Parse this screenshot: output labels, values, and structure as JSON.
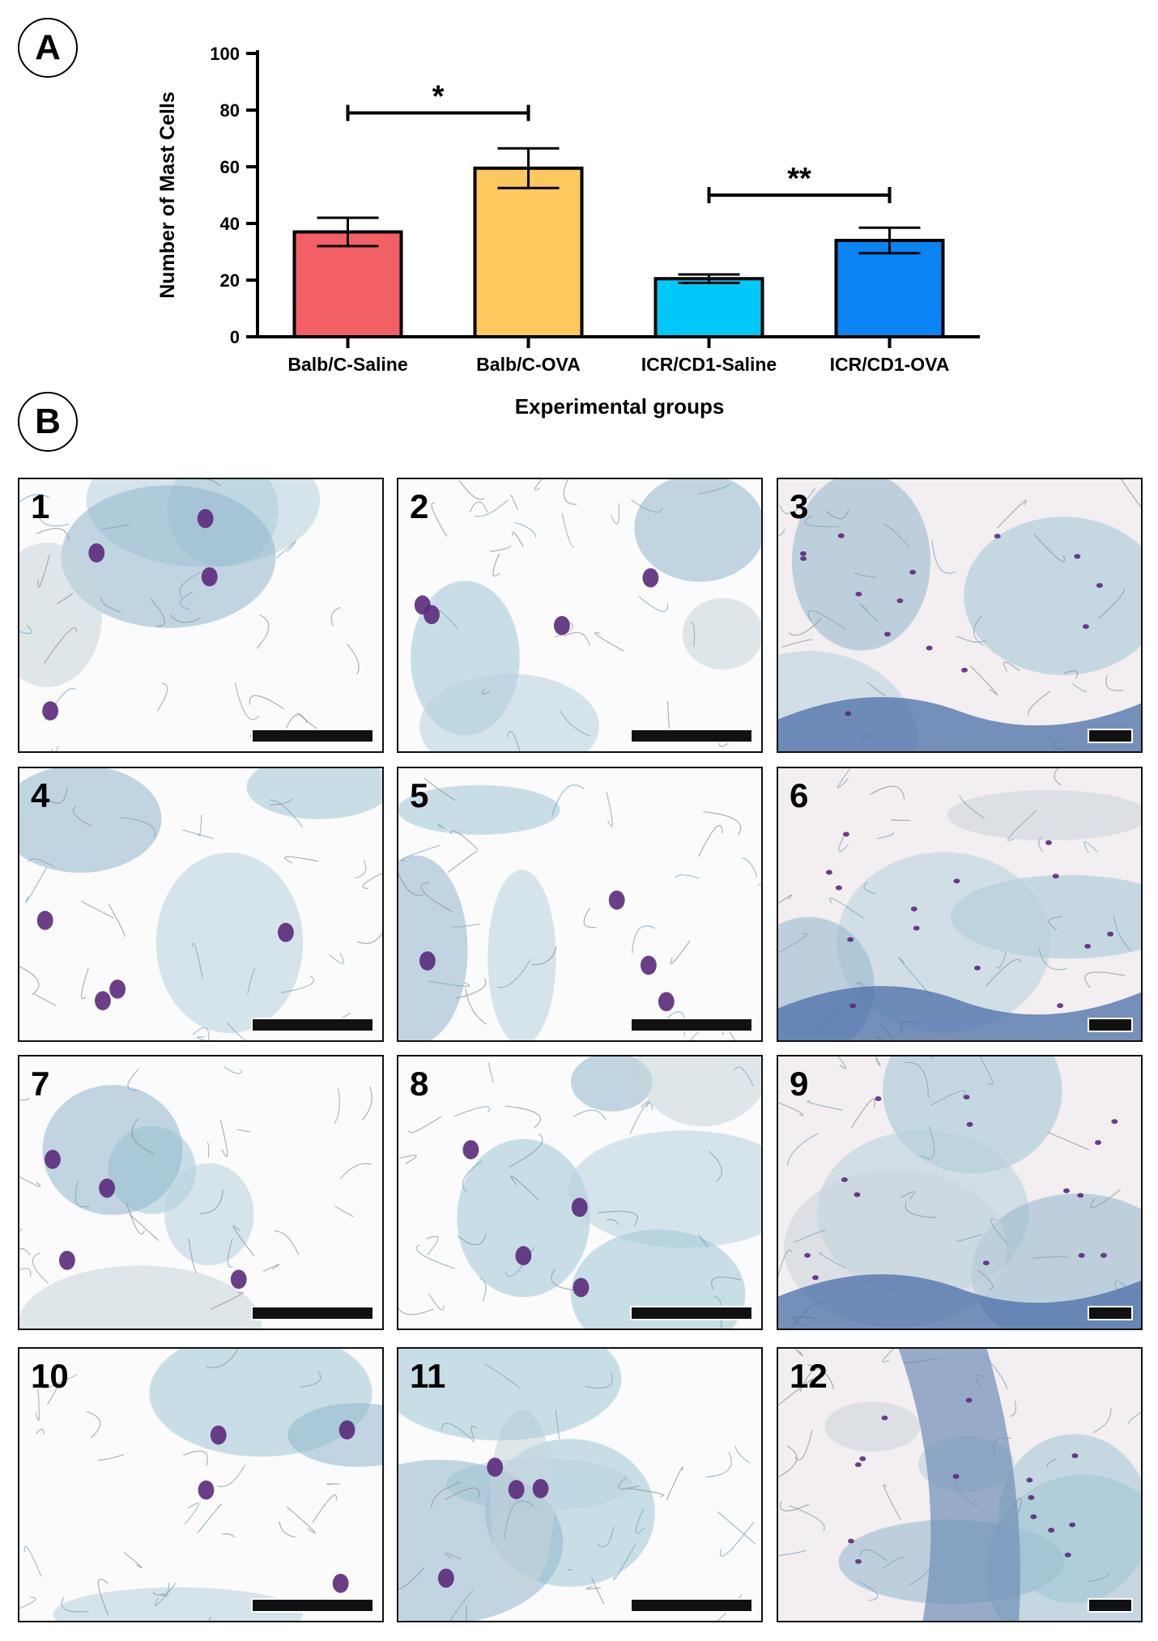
{
  "panels": {
    "a": "A",
    "b": "B"
  },
  "chart_data": {
    "type": "bar",
    "title": "",
    "xlabel": "Experimental groups",
    "ylabel": "Number of Mast Cells",
    "ylim": [
      0,
      100
    ],
    "yticks": [
      0,
      20,
      40,
      60,
      80,
      100
    ],
    "categories": [
      "Balb/C-Saline",
      "Balb/C-OVA",
      "ICR/CD1-Saline",
      "ICR/CD1-OVA"
    ],
    "values": [
      37,
      59.5,
      20.5,
      34
    ],
    "errors": [
      5,
      7,
      1.5,
      4.5
    ],
    "colors": [
      "#f26066",
      "#fdc85e",
      "#00c8f8",
      "#0a84f2"
    ],
    "significance": [
      {
        "from": 0,
        "to": 1,
        "y": 79,
        "label": "*"
      },
      {
        "from": 2,
        "to": 3,
        "y": 50,
        "label": "**"
      }
    ],
    "grid": false,
    "legend": "none"
  },
  "micrographs": {
    "labels": [
      "1",
      "2",
      "3",
      "4",
      "5",
      "6",
      "7",
      "8",
      "9",
      "10",
      "11",
      "12"
    ]
  }
}
